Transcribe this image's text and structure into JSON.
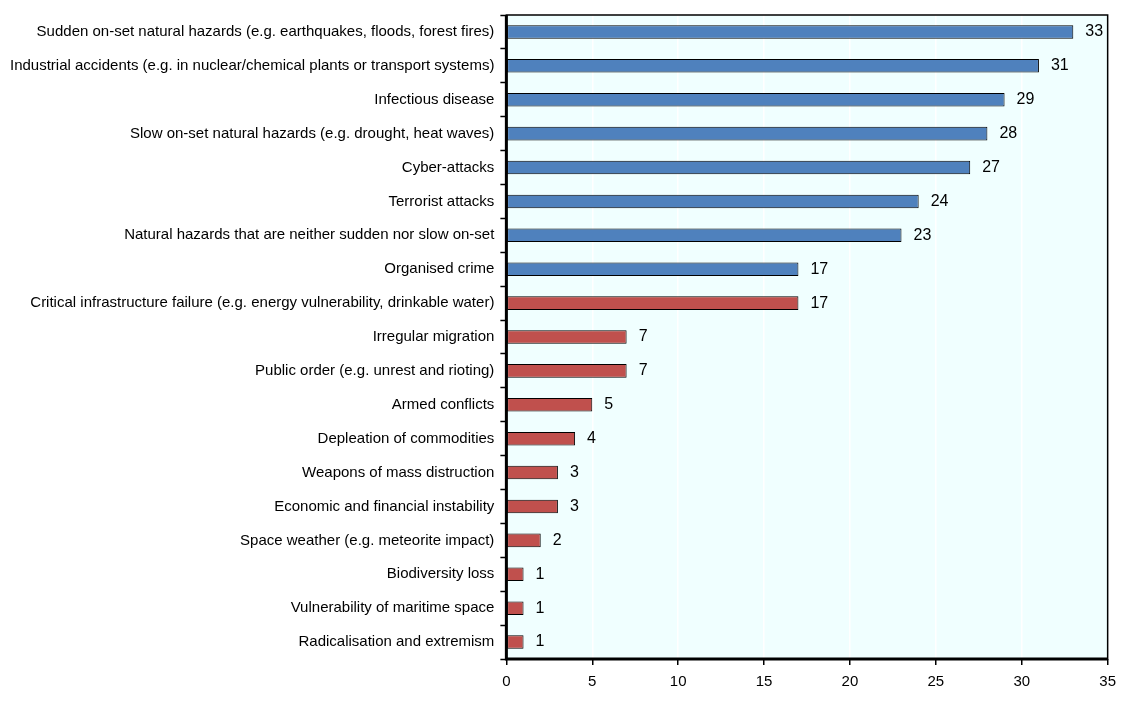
{
  "chart_data": {
    "type": "bar",
    "orientation": "horizontal",
    "categories": [
      "Sudden on-set natural hazards (e.g. earthquakes, floods, forest fires)",
      "Industrial accidents (e.g. in nuclear/chemical plants or transport systems)",
      "Infectious disease",
      "Slow on-set natural hazards (e.g. drought, heat waves)",
      "Cyber-attacks",
      "Terrorist attacks",
      "Natural hazards that are neither sudden nor slow on-set",
      "Organised crime",
      "Critical infrastructure failure (e.g. energy vulnerability, drinkable water)",
      "Irregular migration",
      "Public order (e.g. unrest and rioting)",
      "Armed conflicts",
      "Depleation of commodities",
      "Weapons of mass distruction",
      "Economic and financial instability",
      "Space weather (e.g. meteorite impact)",
      "Biodiversity loss",
      "Vulnerability of maritime space",
      "Radicalisation and extremism"
    ],
    "values": [
      33,
      31,
      29,
      28,
      27,
      24,
      23,
      17,
      17,
      7,
      7,
      5,
      4,
      3,
      3,
      2,
      1,
      1,
      1
    ],
    "colors": [
      "#4f81bd",
      "#4f81bd",
      "#4f81bd",
      "#4f81bd",
      "#4f81bd",
      "#4f81bd",
      "#4f81bd",
      "#4f81bd",
      "#c0504d",
      "#c0504d",
      "#c0504d",
      "#c0504d",
      "#c0504d",
      "#c0504d",
      "#c0504d",
      "#c0504d",
      "#c0504d",
      "#c0504d",
      "#c0504d"
    ],
    "xlim": [
      0,
      35
    ],
    "xticks": [
      0,
      5,
      10,
      15,
      20,
      25,
      30,
      35
    ],
    "grid": "x",
    "data_labels": true,
    "legend": false
  }
}
